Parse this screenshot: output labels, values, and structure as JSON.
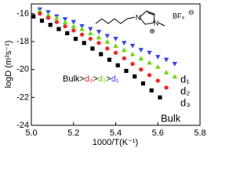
{
  "chart_data": {
    "type": "scatter",
    "xlabel": "1000/T(K⁻¹)",
    "ylabel": "logD (m²s⁻¹)",
    "xlim": [
      5.0,
      5.8
    ],
    "ylim": [
      -24,
      -15.3
    ],
    "xticks": [
      {
        "value": 5.0,
        "label": "5.0"
      },
      5.2,
      5.4,
      5.6,
      5.8
    ],
    "yticks": [
      -16,
      -18,
      -20,
      -22,
      -24
    ],
    "series": [
      {
        "name": "d₁",
        "color": "#3344ff",
        "marker": "triangle-down",
        "x": [
          5.04,
          5.08,
          5.12,
          5.16,
          5.2,
          5.24,
          5.28,
          5.32,
          5.36,
          5.4,
          5.44,
          5.48,
          5.52,
          5.56,
          5.6,
          5.64,
          5.68
        ],
        "values": [
          -15.7,
          -15.9,
          -16.2,
          -16.4,
          -16.6,
          -16.9,
          -17.1,
          -17.3,
          -17.6,
          -17.8,
          -18.1,
          -18.3,
          -18.6,
          -18.8,
          -19.1,
          -19.3,
          -19.6
        ]
      },
      {
        "name": "d₂",
        "color": "#66dd00",
        "marker": "triangle-up",
        "x": [
          5.04,
          5.08,
          5.12,
          5.16,
          5.2,
          5.24,
          5.28,
          5.32,
          5.36,
          5.4,
          5.44,
          5.48,
          5.52,
          5.56,
          5.6,
          5.64,
          5.68
        ],
        "values": [
          -15.8,
          -16.1,
          -16.3,
          -16.6,
          -16.9,
          -17.1,
          -17.4,
          -17.7,
          -18.0,
          -18.3,
          -18.6,
          -18.9,
          -19.2,
          -19.5,
          -19.8,
          -20.2,
          -20.5
        ]
      },
      {
        "name": "d₃",
        "color": "#ff2020",
        "marker": "circle",
        "x": [
          5.04,
          5.08,
          5.12,
          5.16,
          5.2,
          5.24,
          5.28,
          5.32,
          5.36,
          5.4,
          5.44,
          5.48,
          5.52,
          5.56,
          5.6,
          5.64
        ],
        "values": [
          -16.0,
          -16.3,
          -16.6,
          -16.9,
          -17.2,
          -17.5,
          -17.8,
          -18.1,
          -18.5,
          -18.8,
          -19.2,
          -19.6,
          -20.0,
          -20.4,
          -20.8,
          -21.3
        ]
      },
      {
        "name": "Bulk",
        "color": "#000000",
        "marker": "square",
        "x": [
          5.01,
          5.05,
          5.09,
          5.13,
          5.17,
          5.21,
          5.25,
          5.29,
          5.33,
          5.37,
          5.41,
          5.45,
          5.49,
          5.53,
          5.57,
          5.61
        ],
        "values": [
          -16.2,
          -16.5,
          -16.8,
          -17.1,
          -17.4,
          -17.8,
          -18.1,
          -18.5,
          -18.9,
          -19.3,
          -19.7,
          -20.1,
          -20.5,
          -21.0,
          -21.5,
          -22.0
        ]
      }
    ],
    "annotation": [
      {
        "text": "Bulk>",
        "color": "#000000"
      },
      {
        "text": "d₃",
        "color": "#ff2020"
      },
      {
        "text": ">",
        "color": "#000000"
      },
      {
        "text": "d₂",
        "color": "#66dd00"
      },
      {
        "text": ">",
        "color": "#000000"
      },
      {
        "text": "d₁",
        "color": "#3344ff"
      }
    ],
    "inset": {
      "atoms": [
        "N",
        "N"
      ],
      "anion": "BF₄",
      "anion_charge": "⊖",
      "cation_charge": "⊕"
    }
  }
}
